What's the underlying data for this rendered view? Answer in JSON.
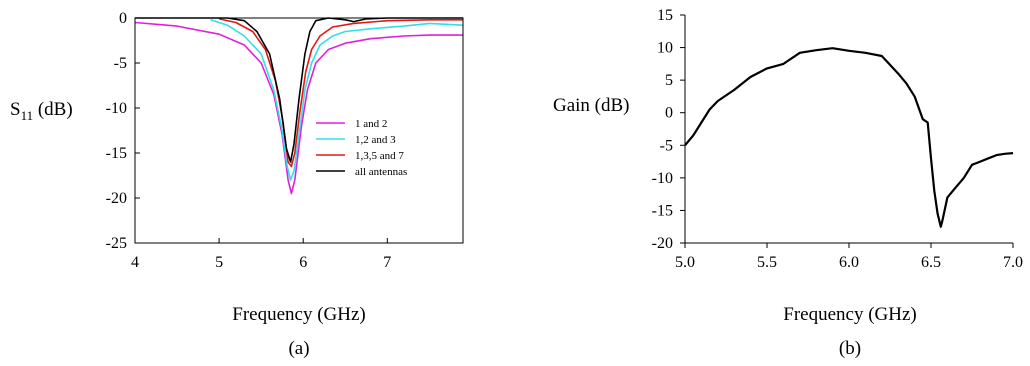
{
  "chart_data": [
    {
      "type": "line",
      "panel_label": "(a)",
      "xlabel": "Frequency (GHz)",
      "ylabel_main": "S",
      "ylabel_sub": "11",
      "ylabel_unit": " (dB)",
      "xlim": [
        4,
        7.9
      ],
      "ylim": [
        -25,
        0
      ],
      "xticks": [
        4,
        5,
        6,
        7
      ],
      "yticks": [
        0,
        -5,
        -10,
        -15,
        -20,
        -25
      ],
      "grid": false,
      "legend_position": "center-right",
      "colors": {
        "1 and 2": "#e020d8",
        "1,2 and 3": "#30e0e8",
        "1,3,5 and 7": "#e01818",
        "all antennas": "#000000"
      },
      "series": [
        {
          "name": "1 and 2",
          "x": [
            4.0,
            4.5,
            5.0,
            5.3,
            5.5,
            5.65,
            5.75,
            5.82,
            5.86,
            5.9,
            5.98,
            6.05,
            6.15,
            6.3,
            6.5,
            6.8,
            7.2,
            7.5,
            7.9
          ],
          "y": [
            -0.5,
            -0.9,
            -1.8,
            -3.0,
            -5.0,
            -8.5,
            -13.0,
            -18.0,
            -19.5,
            -18.0,
            -12.0,
            -8.0,
            -5.0,
            -3.5,
            -2.8,
            -2.3,
            -2.0,
            -1.9,
            -1.9
          ]
        },
        {
          "name": "1,2 and 3",
          "x": [
            4.9,
            5.1,
            5.3,
            5.5,
            5.65,
            5.75,
            5.81,
            5.85,
            5.89,
            5.95,
            6.02,
            6.1,
            6.2,
            6.35,
            6.5,
            6.8,
            7.2,
            7.5,
            7.9
          ],
          "y": [
            -0.2,
            -0.8,
            -2.0,
            -4.0,
            -8.0,
            -12.5,
            -16.5,
            -18.0,
            -17.0,
            -13.0,
            -8.0,
            -5.0,
            -3.0,
            -2.0,
            -1.5,
            -1.2,
            -0.9,
            -0.6,
            -0.8
          ]
        },
        {
          "name": "1,3,5 and 7",
          "x": [
            5.0,
            5.2,
            5.4,
            5.55,
            5.67,
            5.76,
            5.82,
            5.86,
            5.9,
            5.96,
            6.03,
            6.1,
            6.2,
            6.35,
            6.6,
            7.0,
            7.5,
            7.9
          ],
          "y": [
            -0.1,
            -0.5,
            -1.5,
            -3.5,
            -7.0,
            -11.5,
            -16.0,
            -16.5,
            -15.0,
            -10.5,
            -6.0,
            -3.5,
            -2.0,
            -1.0,
            -0.6,
            -0.3,
            -0.2,
            -0.2
          ]
        },
        {
          "name": "all antennas",
          "x": [
            4.0,
            5.1,
            5.3,
            5.45,
            5.6,
            5.72,
            5.8,
            5.85,
            5.89,
            5.95,
            6.02,
            6.08,
            6.15,
            6.3,
            6.5,
            6.6,
            6.75,
            7.0,
            7.9
          ],
          "y": [
            0,
            0,
            -0.3,
            -1.5,
            -4.0,
            -9.0,
            -14.5,
            -16.0,
            -14.0,
            -9.0,
            -4.0,
            -1.5,
            -0.3,
            0,
            -0.2,
            -0.4,
            -0.1,
            0,
            0
          ]
        }
      ]
    },
    {
      "type": "line",
      "panel_label": "(b)",
      "xlabel": "Frequency (GHz)",
      "ylabel": "Gain (dB)",
      "xlim": [
        5.0,
        7.0
      ],
      "ylim": [
        -20,
        15
      ],
      "xticks": [
        5.0,
        5.5,
        6.0,
        6.5,
        7.0
      ],
      "xtick_labels": [
        "5.0",
        "5.5",
        "6.0",
        "6.5",
        "7.0"
      ],
      "yticks": [
        15,
        10,
        5,
        0,
        -5,
        -10,
        -15,
        -20
      ],
      "grid": false,
      "colors": {
        "line": "#000000"
      },
      "series": [
        {
          "x": [
            5.0,
            5.05,
            5.1,
            5.15,
            5.2,
            5.3,
            5.4,
            5.5,
            5.6,
            5.7,
            5.8,
            5.9,
            6.0,
            6.1,
            6.2,
            6.3,
            6.35,
            6.4,
            6.45,
            6.48,
            6.5,
            6.52,
            6.54,
            6.56,
            6.57,
            6.6,
            6.65,
            6.7,
            6.75,
            6.8,
            6.85,
            6.9,
            6.95,
            7.0
          ],
          "y": [
            -5.0,
            -3.5,
            -1.5,
            0.5,
            1.8,
            3.5,
            5.5,
            6.8,
            7.5,
            9.2,
            9.6,
            9.9,
            9.5,
            9.2,
            8.7,
            6.0,
            4.5,
            2.5,
            -1.0,
            -1.5,
            -7.0,
            -12.0,
            -15.5,
            -17.5,
            -16.5,
            -13.0,
            -11.5,
            -10.0,
            -8.0,
            -7.5,
            -7.0,
            -6.5,
            -6.3,
            -6.2
          ]
        }
      ]
    }
  ]
}
